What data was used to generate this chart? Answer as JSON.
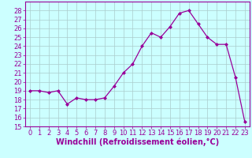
{
  "x": [
    0,
    1,
    2,
    3,
    4,
    5,
    6,
    7,
    8,
    9,
    10,
    11,
    12,
    13,
    14,
    15,
    16,
    17,
    18,
    19,
    20,
    21,
    22,
    23
  ],
  "y": [
    19.0,
    19.0,
    18.8,
    19.0,
    17.5,
    18.2,
    18.0,
    18.0,
    18.2,
    19.5,
    21.0,
    22.0,
    24.0,
    25.5,
    25.0,
    26.2,
    27.7,
    28.0,
    26.5,
    25.0,
    24.2,
    24.2,
    20.5,
    15.5
  ],
  "xlabel": "Windchill (Refroidissement éolien,°C)",
  "xlim": [
    -0.5,
    23.5
  ],
  "ylim": [
    15,
    29
  ],
  "yticks": [
    15,
    16,
    17,
    18,
    19,
    20,
    21,
    22,
    23,
    24,
    25,
    26,
    27,
    28
  ],
  "xticks": [
    0,
    1,
    2,
    3,
    4,
    5,
    6,
    7,
    8,
    9,
    10,
    11,
    12,
    13,
    14,
    15,
    16,
    17,
    18,
    19,
    20,
    21,
    22,
    23
  ],
  "line_color": "#990099",
  "marker": "D",
  "marker_size": 2.0,
  "bg_color": "#ccffff",
  "grid_color": "#aacccc",
  "font_color": "#990099",
  "tick_fontsize": 6,
  "xlabel_fontsize": 7
}
